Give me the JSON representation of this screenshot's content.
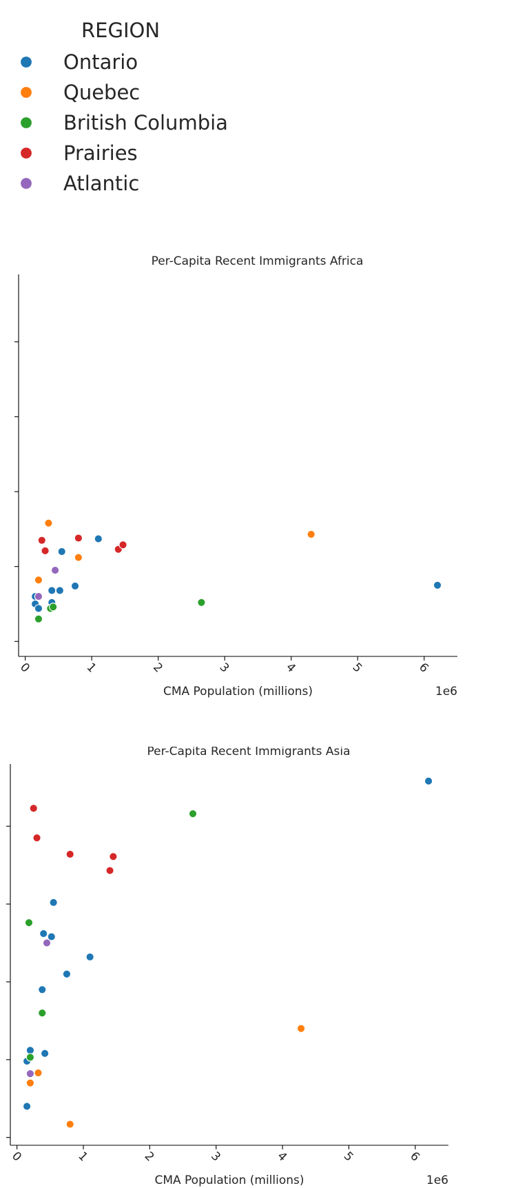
{
  "legend": {
    "title": "REGION",
    "items": [
      {
        "label": "Ontario",
        "color": "#1f77b4"
      },
      {
        "label": "Quebec",
        "color": "#ff7f0e"
      },
      {
        "label": "British Columbia",
        "color": "#2ca02c"
      },
      {
        "label": "Prairies",
        "color": "#d62728"
      },
      {
        "label": "Atlantic",
        "color": "#9467bd"
      }
    ]
  },
  "chart_data": [
    {
      "type": "scatter",
      "title": "Per-Capita Recent Immigrants Africa",
      "xlabel": "CMA Population (millions)",
      "x_offset_label": "1e6",
      "ylabel": "",
      "xlim": [
        -0.1,
        6.5
      ],
      "ylim": [
        -0.2,
        4.9
      ],
      "xticks": [
        0,
        1,
        2,
        3,
        4,
        5,
        6
      ],
      "yticks": [
        0,
        1,
        2,
        3,
        4
      ],
      "grid": false,
      "series": [
        {
          "name": "Ontario",
          "points": [
            [
              0.15,
              0.6
            ],
            [
              0.15,
              0.5
            ],
            [
              0.4,
              0.68
            ],
            [
              0.52,
              0.68
            ],
            [
              0.75,
              0.74
            ],
            [
              0.4,
              0.52
            ],
            [
              0.55,
              1.2
            ],
            [
              1.1,
              1.37
            ],
            [
              6.2,
              0.75
            ],
            [
              0.2,
              0.44
            ]
          ]
        },
        {
          "name": "Quebec",
          "points": [
            [
              0.2,
              0.82
            ],
            [
              0.35,
              1.58
            ],
            [
              0.8,
              1.12
            ],
            [
              4.3,
              1.43
            ]
          ]
        },
        {
          "name": "British Columbia",
          "points": [
            [
              0.2,
              0.3
            ],
            [
              0.38,
              0.44
            ],
            [
              0.42,
              0.46
            ],
            [
              2.65,
              0.52
            ]
          ]
        },
        {
          "name": "Prairies",
          "points": [
            [
              0.25,
              1.35
            ],
            [
              0.3,
              1.21
            ],
            [
              0.8,
              1.38
            ],
            [
              1.4,
              1.23
            ],
            [
              1.47,
              1.29
            ]
          ]
        },
        {
          "name": "Atlantic",
          "points": [
            [
              0.2,
              0.6
            ],
            [
              0.45,
              0.95
            ]
          ]
        }
      ]
    },
    {
      "type": "scatter",
      "title": "Per-Capita Recent Immigrants Asia",
      "xlabel": "CMA Population (millions)",
      "x_offset_label": "1e6",
      "ylabel": "",
      "xlim": [
        -0.1,
        6.5
      ],
      "ylim": [
        -0.1,
        4.8
      ],
      "xticks": [
        0,
        1,
        2,
        3,
        4,
        5,
        6
      ],
      "yticks": [
        0,
        1,
        2,
        3,
        4
      ],
      "grid": false,
      "series": [
        {
          "name": "Ontario",
          "points": [
            [
              6.2,
              4.58
            ],
            [
              0.55,
              3.02
            ],
            [
              0.4,
              2.62
            ],
            [
              0.52,
              2.58
            ],
            [
              1.1,
              2.32
            ],
            [
              0.75,
              2.1
            ],
            [
              0.38,
              1.9
            ],
            [
              0.2,
              1.12
            ],
            [
              0.42,
              1.08
            ],
            [
              0.15,
              0.98
            ],
            [
              0.15,
              0.4
            ]
          ]
        },
        {
          "name": "Quebec",
          "points": [
            [
              4.28,
              1.4
            ],
            [
              0.32,
              0.83
            ],
            [
              0.2,
              0.7
            ],
            [
              0.8,
              0.17
            ]
          ]
        },
        {
          "name": "British Columbia",
          "points": [
            [
              2.65,
              4.16
            ],
            [
              0.18,
              2.76
            ],
            [
              0.38,
              1.6
            ],
            [
              0.2,
              1.03
            ]
          ]
        },
        {
          "name": "Prairies",
          "points": [
            [
              0.25,
              4.23
            ],
            [
              0.3,
              3.85
            ],
            [
              0.8,
              3.64
            ],
            [
              1.45,
              3.61
            ],
            [
              1.4,
              3.43
            ]
          ]
        },
        {
          "name": "Atlantic",
          "points": [
            [
              0.45,
              2.5
            ],
            [
              0.2,
              0.82
            ]
          ]
        }
      ]
    }
  ]
}
